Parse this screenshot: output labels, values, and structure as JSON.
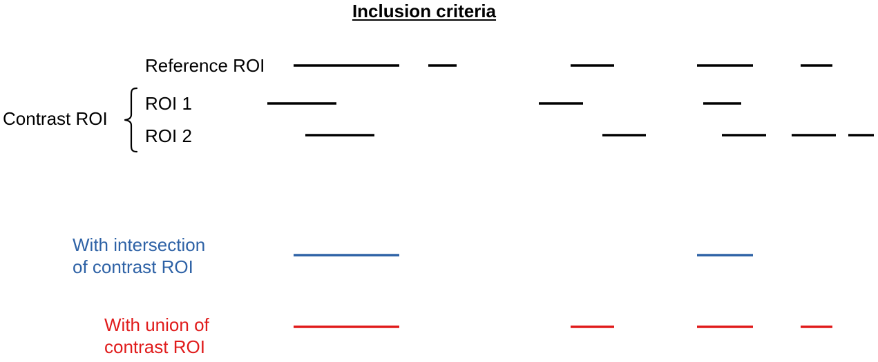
{
  "title": "Inclusion criteria",
  "rows": {
    "reference": {
      "label": "Reference ROI",
      "color": "#000000",
      "segments": [
        [
          425,
          578
        ],
        [
          620,
          661
        ],
        [
          826,
          889
        ],
        [
          1009,
          1090
        ],
        [
          1159,
          1205
        ]
      ]
    },
    "roi1": {
      "label": "ROI 1",
      "color": "#000000",
      "segments": [
        [
          387,
          487
        ],
        [
          780,
          844
        ],
        [
          1018,
          1073
        ]
      ]
    },
    "roi2": {
      "label": "ROI 2",
      "color": "#000000",
      "segments": [
        [
          442,
          542
        ],
        [
          872,
          935
        ],
        [
          1045,
          1109
        ],
        [
          1146,
          1210
        ],
        [
          1228,
          1265
        ]
      ]
    },
    "intersection": {
      "label_line1": "With intersection",
      "label_line2": "of contrast ROI",
      "color": "#2e62a6",
      "segments": [
        [
          425,
          578
        ],
        [
          1009,
          1090
        ]
      ]
    },
    "union": {
      "label_line1": "With union of",
      "label_line2": "contrast ROI",
      "color": "#e01b1b",
      "segments": [
        [
          425,
          578
        ],
        [
          826,
          889
        ],
        [
          1009,
          1090
        ],
        [
          1159,
          1205
        ]
      ]
    }
  },
  "group_label": "Contrast ROI",
  "colors": {
    "text": "#000000",
    "intersection": "#2e62a6",
    "union": "#e01b1b"
  }
}
